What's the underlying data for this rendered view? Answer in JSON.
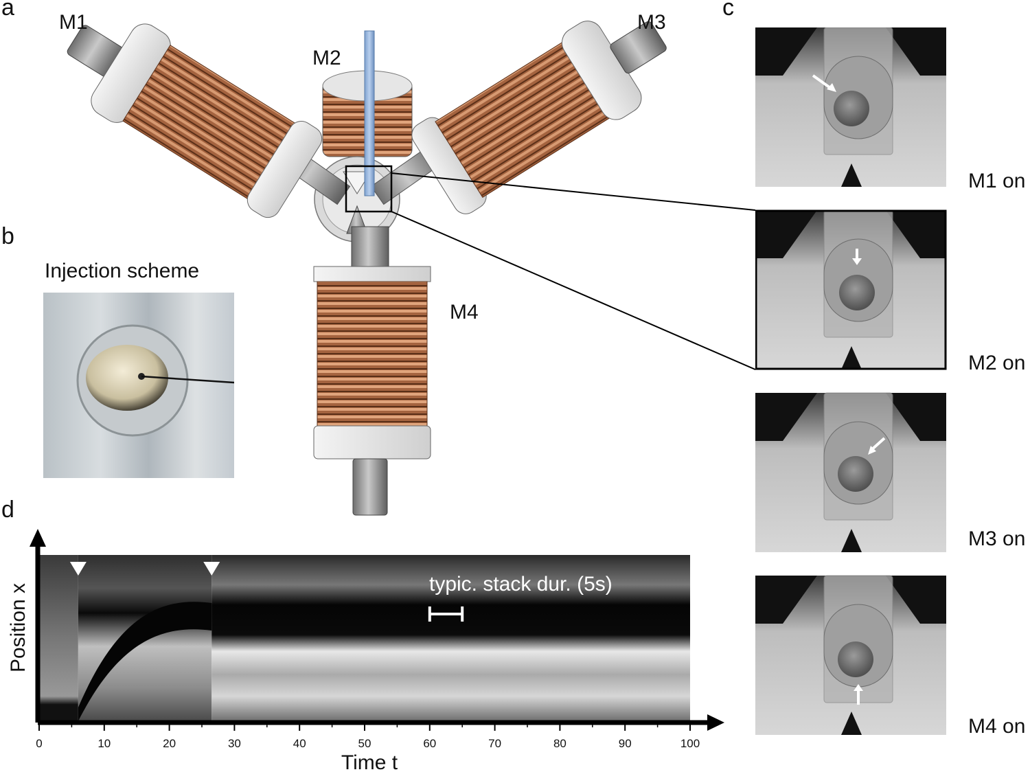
{
  "panels": {
    "a": {
      "letter": "a",
      "magnets": [
        "M1",
        "M2",
        "M3",
        "M4"
      ]
    },
    "b": {
      "letter": "b",
      "title": "Injection scheme"
    },
    "c": {
      "letter": "c",
      "captions": [
        "M1 on",
        "M2 on",
        "M3 on",
        "M4 on"
      ]
    },
    "d": {
      "letter": "d",
      "ylabel": "Position x",
      "xlabel": "Time t",
      "annotation": "typic. stack dur. (5s)"
    }
  },
  "chart_data": {
    "type": "heatmap",
    "xlabel": "Time t",
    "ylabel": "Position x",
    "xlim": [
      0,
      100
    ],
    "x_ticks": [
      0,
      10,
      20,
      30,
      40,
      50,
      60,
      70,
      80,
      90,
      100
    ],
    "event_markers_x": [
      6,
      26.5
    ],
    "scale_bar": {
      "from": 60,
      "to": 65,
      "label": "typic. stack dur. (5s)"
    }
  }
}
